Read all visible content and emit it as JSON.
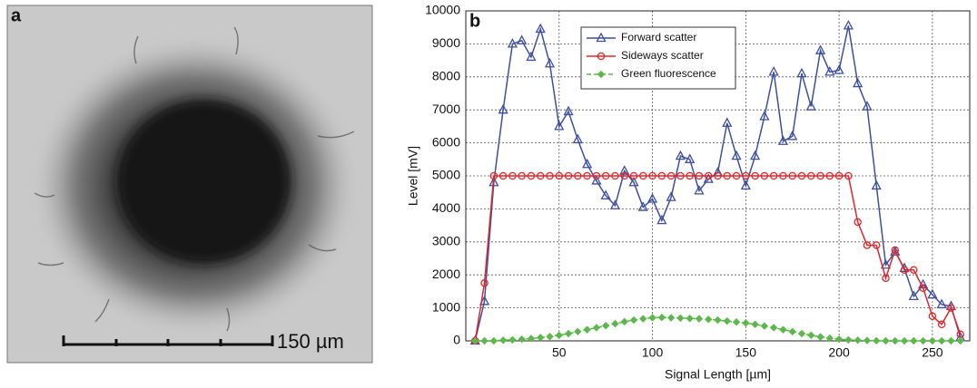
{
  "panel_a": {
    "label": "a",
    "scale_bar": "150 µm"
  },
  "chart_data": {
    "type": "line",
    "panel_label": "b",
    "x_label": "Signal Length [µm]",
    "y_label": "Level [mV]",
    "x": [
      5,
      10,
      15,
      20,
      25,
      30,
      35,
      40,
      45,
      50,
      55,
      60,
      65,
      70,
      75,
      80,
      85,
      90,
      95,
      100,
      105,
      110,
      115,
      120,
      125,
      130,
      135,
      140,
      145,
      150,
      155,
      160,
      165,
      170,
      175,
      180,
      185,
      190,
      195,
      200,
      205,
      210,
      215,
      220,
      225,
      230,
      235,
      240,
      245,
      250,
      255,
      260,
      265
    ],
    "series": [
      {
        "name": "Forward scatter",
        "color": "#3c4fa0",
        "marker": "triangle",
        "values": [
          0,
          1200,
          4800,
          7000,
          9000,
          9100,
          8600,
          9450,
          8400,
          6500,
          6950,
          6100,
          5350,
          4850,
          4400,
          4100,
          5150,
          4800,
          4050,
          4300,
          3650,
          4350,
          5600,
          5500,
          4550,
          4900,
          5100,
          6600,
          5600,
          4700,
          5600,
          6800,
          8150,
          6050,
          6200,
          8100,
          7100,
          8800,
          8150,
          8200,
          9550,
          7800,
          7100,
          4700,
          2300,
          2700,
          2200,
          1350,
          1700,
          1400,
          1100,
          1050,
          100
        ]
      },
      {
        "name": "Sideways scatter",
        "color": "#e0262a",
        "marker": "circle",
        "values": [
          0,
          1750,
          5000,
          5000,
          5000,
          5000,
          5000,
          5000,
          5000,
          5000,
          5000,
          5000,
          5000,
          5000,
          5000,
          5000,
          5000,
          5000,
          5000,
          5000,
          5000,
          5000,
          5000,
          5000,
          5000,
          5000,
          5000,
          5000,
          5000,
          5000,
          5000,
          5000,
          5000,
          5000,
          5000,
          5000,
          5000,
          5000,
          5000,
          5000,
          5000,
          3600,
          2900,
          2900,
          1900,
          2750,
          2150,
          2150,
          1600,
          750,
          500,
          1000,
          200
        ]
      },
      {
        "name": "Green fluorescence",
        "color": "#5cb84a",
        "marker": "diamond",
        "dashed": true,
        "values": [
          0,
          0,
          0,
          20,
          30,
          50,
          70,
          100,
          130,
          170,
          220,
          280,
          340,
          400,
          460,
          520,
          580,
          630,
          670,
          700,
          710,
          700,
          690,
          680,
          670,
          650,
          630,
          600,
          570,
          540,
          500,
          450,
          400,
          340,
          280,
          220,
          170,
          120,
          80,
          50,
          30,
          20,
          10,
          5,
          0,
          0,
          0,
          0,
          0,
          0,
          0,
          0,
          0
        ]
      }
    ],
    "xlim": [
      0,
      270
    ],
    "xticks": [
      50,
      100,
      150,
      200,
      250
    ],
    "ylim": [
      0,
      10000
    ],
    "yticks": [
      0,
      1000,
      2000,
      3000,
      4000,
      5000,
      6000,
      7000,
      8000,
      9000,
      10000
    ],
    "grid": true,
    "legend": "upper-left"
  }
}
